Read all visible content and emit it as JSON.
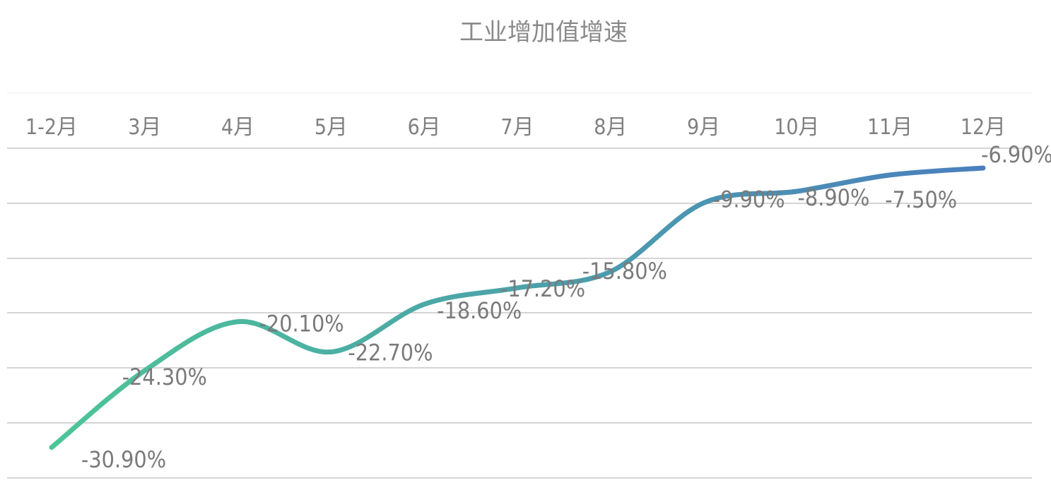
{
  "chart_data": {
    "type": "line",
    "categories": [
      "1-2月",
      "3月",
      "4月",
      "5月",
      "6月",
      "7月",
      "8月",
      "9月",
      "10月",
      "11月",
      "12月"
    ],
    "series": [
      {
        "name": "工业增加值增速",
        "values": [
          -30.9,
          -24.3,
          -20.1,
          -22.7,
          -18.6,
          -17.2,
          -15.8,
          -9.9,
          -8.9,
          -7.5,
          -6.9
        ],
        "labels": [
          "-30.90%",
          "-24.30%",
          "-20.10%",
          "-22.70%",
          "-18.60%",
          "-17.20%",
          "-15.80%",
          "-9.90%",
          "-8.90%",
          "-7.50%",
          "-6.90%"
        ]
      }
    ],
    "ylim": [
      -35,
      0
    ],
    "x_axis_position": "top",
    "legend_position": "top",
    "grid": true,
    "smooth": true,
    "colors": {
      "start": "#4dc597",
      "end": "#4a7fbd",
      "grid": "#d4d4d4",
      "text": "#7a7a7a"
    }
  }
}
